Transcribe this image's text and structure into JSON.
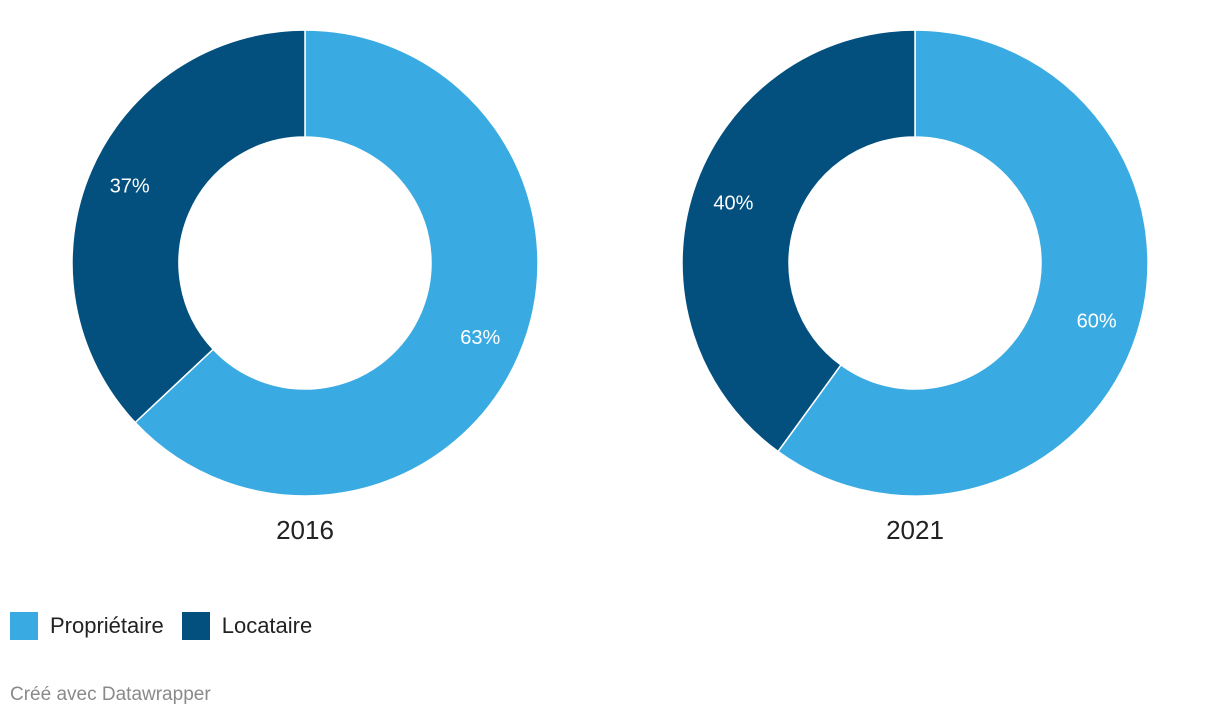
{
  "chart_data": [
    {
      "type": "pie",
      "title": "2016",
      "categories": [
        "Propriétaire",
        "Locataire"
      ],
      "values": [
        63,
        37
      ],
      "labels": [
        "63%",
        "37%"
      ]
    },
    {
      "type": "pie",
      "title": "2021",
      "categories": [
        "Propriétaire",
        "Locataire"
      ],
      "values": [
        60,
        40
      ],
      "labels": [
        "60%",
        "40%"
      ]
    }
  ],
  "colors": {
    "Propriétaire": "#3aabe2",
    "Locataire": "#03507f"
  },
  "legend": {
    "items": [
      {
        "label": "Propriétaire",
        "color": "#3aabe2"
      },
      {
        "label": "Locataire",
        "color": "#03507f"
      }
    ]
  },
  "footer": {
    "credit": "Créé avec Datawrapper"
  }
}
